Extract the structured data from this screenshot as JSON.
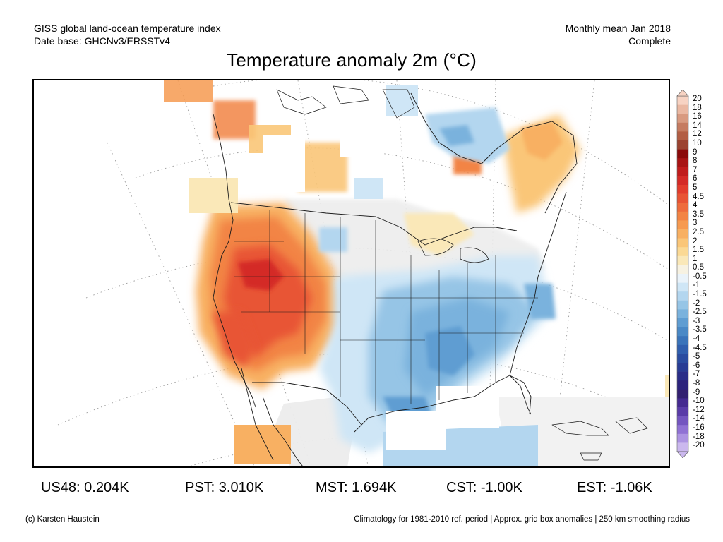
{
  "header": {
    "source_line1": "GISS global land-ocean temperature index",
    "source_line2": "Date base: GHCNv3/ERSSTv4",
    "period_line1": "Monthly mean Jan 2018",
    "period_line2": "Complete"
  },
  "title": "Temperature anomaly 2m (°C)",
  "colorbar": {
    "labels": [
      "20",
      "18",
      "16",
      "14",
      "12",
      "10",
      "9",
      "8",
      "7",
      "6",
      "5",
      "4.5",
      "4",
      "3.5",
      "3",
      "2.5",
      "2",
      "1.5",
      "1",
      "0.5",
      "-0.5",
      "-1",
      "-1.5",
      "-2",
      "-2.5",
      "-3",
      "-3.5",
      "-4",
      "-4.5",
      "-5",
      "-6",
      "-7",
      "-8",
      "-9",
      "-10",
      "-12",
      "-14",
      "-16",
      "-18",
      "-20"
    ],
    "colors": [
      "#f7d3c3",
      "#eab8a2",
      "#d89a80",
      "#c57b60",
      "#b25e44",
      "#9b4330",
      "#8a0a0a",
      "#a81414",
      "#c01c1c",
      "#d42a26",
      "#e23c2c",
      "#e85434",
      "#ee6c3c",
      "#f28444",
      "#f69a50",
      "#f8b062",
      "#fac678",
      "#fbd994",
      "#fae8b8",
      "#f7f2e2",
      "#eaf3fa",
      "#cfe6f6",
      "#b3d6ef",
      "#96c5e6",
      "#7ab2dd",
      "#5f9dd2",
      "#4a89c6",
      "#3a74ba",
      "#305fae",
      "#2a4ca0",
      "#283c94",
      "#2a2e88",
      "#2c237c",
      "#332070",
      "#452a90",
      "#5a3ca8",
      "#7456c0",
      "#9072d4",
      "#ad94e2",
      "#cbb8ee"
    ]
  },
  "stats": {
    "us48": "US48: 0.204K",
    "pst": "PST: 3.010K",
    "mst": "MST: 1.694K",
    "cst": "CST: -1.00K",
    "est": "EST: -1.06K"
  },
  "footer": {
    "credit": "(c) Karsten Haustein",
    "note": "Climatology for 1981-2010 ref. period | Approx. grid box anomalies | 250 km smoothing radius"
  }
}
